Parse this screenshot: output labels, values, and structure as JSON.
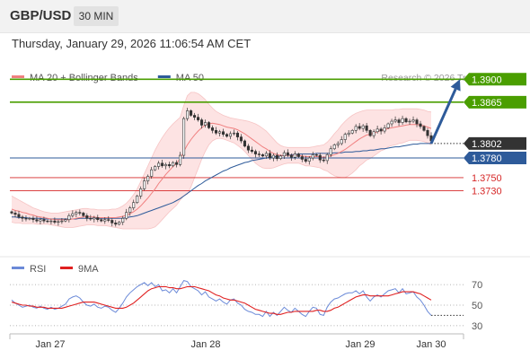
{
  "header": {
    "pair": "GBP/USD",
    "timeframe": "30 MIN"
  },
  "datetime": "Thursday, January 29, 2026 11:06:54 AM CET",
  "colors": {
    "bollinger": "#f08080",
    "ma50": "#2e5b9a",
    "green": "#4a9e00",
    "red": "#d62828",
    "rsi": "#6b8ad8",
    "rsi_ma": "#e02020",
    "current": "#333333",
    "arrow": "#2e5b9a"
  },
  "chart_data": [
    {
      "type": "candlestick",
      "legend": [
        {
          "label": "MA 20 + Bollinger Bands",
          "color": "#f08080"
        },
        {
          "label": "MA 50",
          "color": "#2e5b9a"
        }
      ],
      "legend_position": "top-left",
      "credit": "Research © 2026 Trading Central",
      "ylim": [
        1.3635,
        1.3925
      ],
      "x_ticks": [
        "Jan 27",
        "Jan 28",
        "Jan 29",
        "Jan 30"
      ],
      "current_price": {
        "value": 1.3802,
        "label": "1.3802"
      },
      "levels": [
        {
          "value": 1.39,
          "label": "1.3900",
          "color": "#4a9e00"
        },
        {
          "value": 1.3865,
          "label": "1.3865",
          "color": "#4a9e00"
        },
        {
          "value": 1.378,
          "label": "1.3780",
          "color": "#2e5b9a"
        },
        {
          "value": 1.375,
          "label": "1.3750",
          "color": "#d62828"
        },
        {
          "value": 1.373,
          "label": "1.3730",
          "color": "#d62828"
        }
      ],
      "forecast_arrow": {
        "from": 1.3802,
        "to": 1.39
      },
      "close": [
        1.3696,
        1.3694,
        1.369,
        1.3688,
        1.3687,
        1.3688,
        1.3686,
        1.3684,
        1.3686,
        1.3684,
        1.3683,
        1.3684,
        1.3682,
        1.3683,
        1.3684,
        1.3686,
        1.3692,
        1.3695,
        1.3697,
        1.3696,
        1.3692,
        1.3688,
        1.3687,
        1.3689,
        1.3686,
        1.3684,
        1.3686,
        1.3685,
        1.3681,
        1.3679,
        1.3682,
        1.3688,
        1.3697,
        1.3704,
        1.3712,
        1.3722,
        1.3733,
        1.3745,
        1.3752,
        1.3762,
        1.3767,
        1.3772,
        1.3768,
        1.377,
        1.3768,
        1.3773,
        1.377,
        1.3784,
        1.384,
        1.3852,
        1.3845,
        1.3842,
        1.3838,
        1.383,
        1.3834,
        1.3826,
        1.3822,
        1.3818,
        1.382,
        1.3816,
        1.3813,
        1.3817,
        1.3818,
        1.3812,
        1.3806,
        1.3798,
        1.3792,
        1.379,
        1.3786,
        1.3785,
        1.3783,
        1.3787,
        1.378,
        1.3784,
        1.3779,
        1.3783,
        1.3788,
        1.3784,
        1.3781,
        1.3786,
        1.3782,
        1.3778,
        1.3775,
        1.378,
        1.3785,
        1.3784,
        1.3777,
        1.3776,
        1.3785,
        1.3794,
        1.38,
        1.3802,
        1.3808,
        1.3816,
        1.3818,
        1.3822,
        1.3828,
        1.3825,
        1.3829,
        1.3822,
        1.3814,
        1.382,
        1.3824,
        1.3821,
        1.3826,
        1.3832,
        1.3836,
        1.3838,
        1.3834,
        1.384,
        1.3835,
        1.3836,
        1.3838,
        1.3832,
        1.3828,
        1.3822,
        1.3814,
        1.3806
      ],
      "ma20": [
        1.3702,
        1.37,
        1.3699,
        1.3697,
        1.3696,
        1.3694,
        1.3693,
        1.3691,
        1.369,
        1.3689,
        1.3688,
        1.3687,
        1.3686,
        1.3686,
        1.3686,
        1.3686,
        1.3686,
        1.3687,
        1.3688,
        1.3689,
        1.369,
        1.3691,
        1.369,
        1.369,
        1.3689,
        1.3689,
        1.3689,
        1.3689,
        1.3689,
        1.3689,
        1.369,
        1.3691,
        1.3693,
        1.3695,
        1.3698,
        1.3702,
        1.3707,
        1.3713,
        1.3719,
        1.3726,
        1.3733,
        1.3741,
        1.3748,
        1.3755,
        1.3761,
        1.3767,
        1.3772,
        1.3779,
        1.379,
        1.38,
        1.3808,
        1.3815,
        1.3821,
        1.3826,
        1.383,
        1.3832,
        1.3833,
        1.3832,
        1.3831,
        1.3829,
        1.3827,
        1.3826,
        1.3825,
        1.3823,
        1.382,
        1.3817,
        1.3813,
        1.3809,
        1.3805,
        1.3801,
        1.3797,
        1.3794,
        1.379,
        1.3787,
        1.3785,
        1.3784,
        1.3784,
        1.3784,
        1.3784,
        1.3784,
        1.3784,
        1.3783,
        1.3782,
        1.3782,
        1.3782,
        1.3782,
        1.3782,
        1.3781,
        1.3782,
        1.3783,
        1.3785,
        1.3787,
        1.379,
        1.3793,
        1.3797,
        1.3801,
        1.3805,
        1.3809,
        1.3812,
        1.3815,
        1.3816,
        1.3818,
        1.382,
        1.3822,
        1.3823,
        1.3825,
        1.3826,
        1.3827,
        1.3828,
        1.3829,
        1.383,
        1.3831,
        1.3831,
        1.3831,
        1.383,
        1.3829,
        1.3827,
        1.3825
      ],
      "bb_upper": [
        1.3722,
        1.3719,
        1.3716,
        1.3713,
        1.371,
        1.3707,
        1.3704,
        1.3702,
        1.37,
        1.3698,
        1.3697,
        1.3696,
        1.3696,
        1.3696,
        1.3697,
        1.3698,
        1.3699,
        1.37,
        1.3701,
        1.3702,
        1.3703,
        1.3703,
        1.3702,
        1.3702,
        1.3701,
        1.3701,
        1.3701,
        1.3701,
        1.3702,
        1.3702,
        1.3704,
        1.3707,
        1.3711,
        1.3717,
        1.3724,
        1.3733,
        1.3744,
        1.3756,
        1.3768,
        1.378,
        1.3792,
        1.3802,
        1.3811,
        1.3819,
        1.3826,
        1.3832,
        1.3837,
        1.3842,
        1.386,
        1.3875,
        1.388,
        1.388,
        1.3878,
        1.3874,
        1.3869,
        1.3862,
        1.3856,
        1.3851,
        1.3848,
        1.3845,
        1.3843,
        1.3841,
        1.384,
        1.3839,
        1.3838,
        1.3837,
        1.3836,
        1.3834,
        1.3832,
        1.3829,
        1.3825,
        1.3821,
        1.3815,
        1.3809,
        1.3803,
        1.3799,
        1.3797,
        1.3796,
        1.3796,
        1.3796,
        1.3796,
        1.3796,
        1.3796,
        1.3796,
        1.3797,
        1.3798,
        1.3799,
        1.38,
        1.3804,
        1.381,
        1.3817,
        1.3823,
        1.383,
        1.3836,
        1.3841,
        1.3845,
        1.3848,
        1.385,
        1.3852,
        1.3853,
        1.3853,
        1.3853,
        1.3853,
        1.3853,
        1.3853,
        1.3853,
        1.3853,
        1.3854,
        1.3854,
        1.3855,
        1.3855,
        1.3855,
        1.3855,
        1.3855,
        1.3854,
        1.3853,
        1.3851,
        1.385
      ],
      "bb_lower": [
        1.3682,
        1.3681,
        1.3681,
        1.368,
        1.368,
        1.368,
        1.368,
        1.3679,
        1.3679,
        1.3679,
        1.3679,
        1.3678,
        1.3677,
        1.3676,
        1.3675,
        1.3674,
        1.3674,
        1.3674,
        1.3675,
        1.3676,
        1.3677,
        1.3678,
        1.3678,
        1.3678,
        1.3677,
        1.3677,
        1.3677,
        1.3676,
        1.3675,
        1.3674,
        1.3673,
        1.3672,
        1.3672,
        1.3672,
        1.3672,
        1.3672,
        1.3672,
        1.3672,
        1.3672,
        1.3673,
        1.3675,
        1.368,
        1.3686,
        1.3692,
        1.3698,
        1.3703,
        1.3708,
        1.3716,
        1.3722,
        1.3725,
        1.3736,
        1.375,
        1.3764,
        1.3778,
        1.379,
        1.38,
        1.3806,
        1.3809,
        1.381,
        1.3809,
        1.3807,
        1.3805,
        1.3803,
        1.3799,
        1.3795,
        1.379,
        1.3784,
        1.3778,
        1.3772,
        1.3768,
        1.3765,
        1.3764,
        1.3764,
        1.3765,
        1.3767,
        1.3769,
        1.3771,
        1.3772,
        1.3772,
        1.3772,
        1.3772,
        1.377,
        1.3768,
        1.3768,
        1.3767,
        1.3766,
        1.3765,
        1.3762,
        1.376,
        1.3756,
        1.3753,
        1.3751,
        1.375,
        1.375,
        1.3753,
        1.3757,
        1.3762,
        1.3768,
        1.3772,
        1.3777,
        1.3779,
        1.3783,
        1.3787,
        1.3791,
        1.3793,
        1.3797,
        1.3799,
        1.38,
        1.3802,
        1.3803,
        1.3805,
        1.3807,
        1.3807,
        1.3807,
        1.3806,
        1.3805,
        1.3803,
        1.38
      ],
      "ma50": [
        1.369,
        1.369,
        1.3689,
        1.3689,
        1.3689,
        1.3688,
        1.3688,
        1.3688,
        1.3688,
        1.3687,
        1.3687,
        1.3687,
        1.3687,
        1.3687,
        1.3687,
        1.3687,
        1.3687,
        1.3687,
        1.3687,
        1.3688,
        1.3688,
        1.3688,
        1.3688,
        1.3688,
        1.3688,
        1.3688,
        1.3688,
        1.3688,
        1.3688,
        1.3688,
        1.3688,
        1.3688,
        1.3689,
        1.369,
        1.3691,
        1.3692,
        1.3694,
        1.3696,
        1.3698,
        1.37,
        1.3702,
        1.3704,
        1.3706,
        1.3708,
        1.371,
        1.3712,
        1.3715,
        1.3718,
        1.3722,
        1.3726,
        1.373,
        1.3734,
        1.3738,
        1.3741,
        1.3745,
        1.3748,
        1.3751,
        1.3754,
        1.3757,
        1.376,
        1.3762,
        1.3765,
        1.3767,
        1.3769,
        1.3771,
        1.3773,
        1.3774,
        1.3776,
        1.3777,
        1.3778,
        1.3779,
        1.378,
        1.3781,
        1.3782,
        1.3782,
        1.3783,
        1.3784,
        1.3784,
        1.3785,
        1.3785,
        1.3786,
        1.3786,
        1.3786,
        1.3786,
        1.3786,
        1.3787,
        1.3787,
        1.3787,
        1.3787,
        1.3787,
        1.3788,
        1.3788,
        1.3788,
        1.3789,
        1.3789,
        1.3789,
        1.379,
        1.379,
        1.3791,
        1.3791,
        1.3792,
        1.3792,
        1.3793,
        1.3794,
        1.3794,
        1.3795,
        1.3796,
        1.3797,
        1.3797,
        1.3798,
        1.3799,
        1.38,
        1.3801,
        1.3801,
        1.3802,
        1.3802,
        1.3802,
        1.3802
      ]
    },
    {
      "type": "line",
      "legend": [
        {
          "label": "RSI",
          "color": "#6b8ad8"
        },
        {
          "label": "9MA",
          "color": "#e02020"
        }
      ],
      "legend_position": "top-left",
      "ylim": [
        22,
        78
      ],
      "y_ticks": [
        70,
        50,
        30
      ],
      "rsi": [
        55,
        52,
        50,
        48,
        49,
        50,
        48,
        47,
        49,
        47,
        46,
        48,
        46,
        47,
        49,
        51,
        56,
        58,
        59,
        57,
        53,
        50,
        49,
        51,
        48,
        47,
        49,
        48,
        45,
        43,
        47,
        52,
        58,
        62,
        65,
        68,
        70,
        72,
        69,
        72,
        68,
        70,
        64,
        65,
        62,
        66,
        62,
        68,
        74,
        73,
        68,
        66,
        64,
        60,
        63,
        58,
        56,
        54,
        56,
        53,
        51,
        55,
        56,
        52,
        50,
        46,
        44,
        43,
        41,
        41,
        39,
        44,
        39,
        43,
        40,
        44,
        48,
        45,
        43,
        47,
        44,
        41,
        39,
        44,
        48,
        47,
        41,
        40,
        48,
        53,
        56,
        57,
        59,
        61,
        62,
        62,
        64,
        61,
        64,
        58,
        54,
        58,
        60,
        58,
        61,
        64,
        65,
        66,
        62,
        66,
        61,
        62,
        63,
        58,
        55,
        50,
        44,
        40
      ],
      "rsi_ma": [
        53,
        52,
        51,
        50,
        50,
        49,
        49,
        48,
        48,
        48,
        47,
        47,
        47,
        47,
        47,
        48,
        49,
        50,
        51,
        52,
        53,
        53,
        53,
        53,
        52,
        51,
        50,
        49,
        48,
        47,
        47,
        47,
        48,
        50,
        52,
        55,
        58,
        61,
        64,
        66,
        67,
        68,
        68,
        68,
        67,
        67,
        66,
        66,
        67,
        68,
        68,
        68,
        67,
        66,
        65,
        64,
        62,
        60,
        59,
        57,
        56,
        55,
        55,
        54,
        53,
        52,
        50,
        48,
        46,
        45,
        44,
        43,
        42,
        42,
        41,
        41,
        42,
        43,
        43,
        44,
        44,
        44,
        44,
        44,
        44,
        45,
        45,
        44,
        44,
        45,
        47,
        48,
        50,
        52,
        54,
        56,
        58,
        59,
        60,
        60,
        59,
        59,
        59,
        59,
        59,
        59,
        60,
        61,
        62,
        63,
        63,
        63,
        63,
        62,
        61,
        59,
        57,
        55
      ]
    }
  ]
}
